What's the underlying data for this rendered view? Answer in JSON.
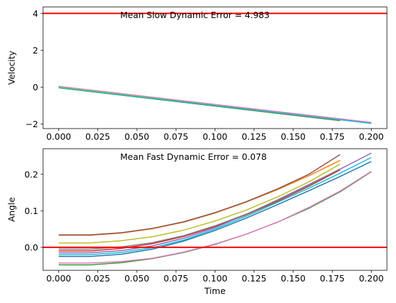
{
  "chart_data": [
    {
      "type": "line",
      "ylabel": "Velocity",
      "xlim": [
        -0.01,
        0.21
      ],
      "ylim": [
        -2.25,
        4.35
      ],
      "xticks": [
        "0.000",
        "0.025",
        "0.050",
        "0.075",
        "0.100",
        "0.125",
        "0.150",
        "0.175",
        "0.200"
      ],
      "yticks": [
        "−2",
        "0",
        "2",
        "4"
      ],
      "annotation": "Mean Slow Dynamic Error = 4.983",
      "hline": 4.0,
      "hline_color": "#ff0000",
      "series": [
        {
          "color": "#1f77b4",
          "x": [
            0,
            0.2
          ],
          "y": [
            0.0,
            -1.96
          ]
        },
        {
          "color": "#ff7f0e",
          "x": [
            0,
            0.2
          ],
          "y": [
            0.02,
            -1.94
          ]
        },
        {
          "color": "#2ca02c",
          "x": [
            0,
            0.18
          ],
          "y": [
            -0.04,
            -1.82
          ]
        },
        {
          "color": "#d62728",
          "x": [
            0,
            0.18
          ],
          "y": [
            0.01,
            -1.77
          ]
        },
        {
          "color": "#9467bd",
          "x": [
            0,
            0.2
          ],
          "y": [
            0.03,
            -1.93
          ]
        },
        {
          "color": "#8c564b",
          "x": [
            0,
            0.18
          ],
          "y": [
            -0.02,
            -1.8
          ]
        },
        {
          "color": "#e377c2",
          "x": [
            0,
            0.2
          ],
          "y": [
            0.04,
            -1.92
          ]
        },
        {
          "color": "#7f7f7f",
          "x": [
            0,
            0.18
          ],
          "y": [
            -0.01,
            -1.79
          ]
        },
        {
          "color": "#bcbd22",
          "x": [
            0,
            0.18
          ],
          "y": [
            0.0,
            -1.78
          ]
        },
        {
          "color": "#17becf",
          "x": [
            0,
            0.2
          ],
          "y": [
            -0.03,
            -1.97
          ]
        }
      ]
    },
    {
      "type": "line",
      "xlabel": "Time",
      "ylabel": "Angle",
      "xlim": [
        -0.01,
        0.21
      ],
      "ylim": [
        -0.063,
        0.27
      ],
      "xticks": [
        "0.000",
        "0.025",
        "0.050",
        "0.075",
        "0.100",
        "0.125",
        "0.150",
        "0.175",
        "0.200"
      ],
      "yticks": [
        "0.0",
        "0.1",
        "0.2"
      ],
      "annotation": "Mean Fast Dynamic Error = 0.078",
      "hline": 0.0,
      "hline_color": "#ff0000",
      "series": [
        {
          "color": "#1f77b4",
          "x": [
            0,
            0.02,
            0.04,
            0.06,
            0.08,
            0.1,
            0.12,
            0.14,
            0.16,
            0.18,
            0.2
          ],
          "y": [
            -0.025,
            -0.025,
            -0.019,
            -0.005,
            0.017,
            0.046,
            0.08,
            0.117,
            0.155,
            0.194,
            0.235
          ]
        },
        {
          "color": "#ff7f0e",
          "x": [
            0,
            0.02,
            0.04,
            0.06,
            0.08,
            0.1,
            0.12,
            0.14,
            0.16,
            0.18
          ],
          "y": [
            0.033,
            0.033,
            0.039,
            0.051,
            0.069,
            0.094,
            0.124,
            0.158,
            0.196,
            0.238
          ]
        },
        {
          "color": "#2ca02c",
          "x": [
            0,
            0.02,
            0.04,
            0.06,
            0.08,
            0.1,
            0.12,
            0.14,
            0.16,
            0.18,
            0.2
          ],
          "y": [
            -0.048,
            -0.048,
            -0.042,
            -0.031,
            -0.014,
            0.008,
            0.036,
            0.069,
            0.107,
            0.152,
            0.207
          ]
        },
        {
          "color": "#d62728",
          "x": [
            0,
            0.02,
            0.04,
            0.06,
            0.08,
            0.1,
            0.12,
            0.14,
            0.16,
            0.18
          ],
          "y": [
            -0.01,
            -0.01,
            -0.003,
            0.01,
            0.03,
            0.057,
            0.089,
            0.126,
            0.167,
            0.212
          ]
        },
        {
          "color": "#9467bd",
          "x": [
            0,
            0.02,
            0.04,
            0.06,
            0.08,
            0.1,
            0.12,
            0.14,
            0.16,
            0.18,
            0.2
          ],
          "y": [
            -0.015,
            -0.015,
            -0.009,
            0.004,
            0.025,
            0.054,
            0.09,
            0.13,
            0.172,
            0.214,
            0.258
          ]
        },
        {
          "color": "#8c564b",
          "x": [
            0,
            0.02,
            0.04,
            0.06,
            0.08,
            0.1,
            0.12,
            0.14,
            0.16,
            0.18
          ],
          "y": [
            0.034,
            0.034,
            0.04,
            0.052,
            0.07,
            0.095,
            0.125,
            0.16,
            0.2,
            0.254
          ]
        },
        {
          "color": "#e377c2",
          "x": [
            0,
            0.02,
            0.04,
            0.06,
            0.08,
            0.1,
            0.12,
            0.14,
            0.16,
            0.18,
            0.2
          ],
          "y": [
            -0.043,
            -0.043,
            -0.039,
            -0.03,
            -0.013,
            0.009,
            0.036,
            0.069,
            0.109,
            0.154,
            0.208
          ]
        },
        {
          "color": "#7f7f7f",
          "x": [
            0,
            0.02,
            0.04,
            0.06,
            0.08,
            0.1,
            0.12,
            0.14,
            0.16,
            0.18
          ],
          "y": [
            -0.005,
            -0.005,
            0.001,
            0.013,
            0.032,
            0.059,
            0.091,
            0.128,
            0.169,
            0.215
          ]
        },
        {
          "color": "#bcbd22",
          "x": [
            0,
            0.02,
            0.04,
            0.06,
            0.08,
            0.1,
            0.12,
            0.14,
            0.16,
            0.18
          ],
          "y": [
            0.012,
            0.012,
            0.018,
            0.029,
            0.047,
            0.072,
            0.102,
            0.138,
            0.179,
            0.228
          ]
        },
        {
          "color": "#17becf",
          "x": [
            0,
            0.02,
            0.04,
            0.06,
            0.08,
            0.1,
            0.12,
            0.14,
            0.16,
            0.18,
            0.2
          ],
          "y": [
            -0.02,
            -0.02,
            -0.014,
            -0.001,
            0.02,
            0.05,
            0.085,
            0.123,
            0.162,
            0.203,
            0.246
          ]
        }
      ]
    }
  ]
}
